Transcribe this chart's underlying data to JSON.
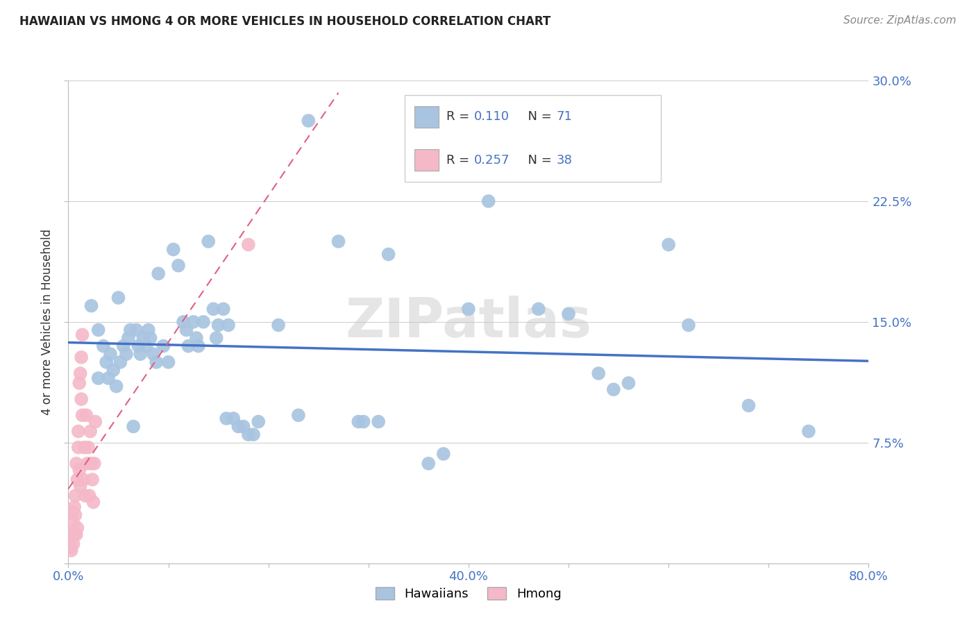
{
  "title": "HAWAIIAN VS HMONG 4 OR MORE VEHICLES IN HOUSEHOLD CORRELATION CHART",
  "source": "Source: ZipAtlas.com",
  "ylabel": "4 or more Vehicles in Household",
  "xlim": [
    0.0,
    0.8
  ],
  "ylim": [
    0.0,
    0.3
  ],
  "yticks": [
    0.0,
    0.075,
    0.15,
    0.225,
    0.3
  ],
  "xticks": [
    0.0,
    0.1,
    0.2,
    0.3,
    0.4,
    0.5,
    0.6,
    0.7,
    0.8
  ],
  "ytick_labels": [
    "",
    "7.5%",
    "15.0%",
    "22.5%",
    "30.0%"
  ],
  "xtick_labels": [
    "0.0%",
    "",
    "",
    "",
    "40.0%",
    "",
    "",
    "",
    "80.0%"
  ],
  "hawaiian_R": 0.11,
  "hawaiian_N": 71,
  "hmong_R": 0.257,
  "hmong_N": 38,
  "hawaiian_color": "#a8c4e0",
  "hmong_color": "#f4b8c8",
  "trend_hawaiian_color": "#4472c4",
  "trend_hmong_color": "#e06080",
  "watermark": "ZIPatlas",
  "hawaiian_x": [
    0.023,
    0.03,
    0.03,
    0.035,
    0.038,
    0.04,
    0.042,
    0.045,
    0.048,
    0.05,
    0.052,
    0.055,
    0.058,
    0.06,
    0.062,
    0.065,
    0.068,
    0.07,
    0.072,
    0.075,
    0.078,
    0.08,
    0.082,
    0.085,
    0.088,
    0.09,
    0.095,
    0.1,
    0.105,
    0.11,
    0.115,
    0.118,
    0.12,
    0.125,
    0.128,
    0.13,
    0.135,
    0.14,
    0.145,
    0.148,
    0.15,
    0.155,
    0.158,
    0.16,
    0.165,
    0.17,
    0.175,
    0.18,
    0.185,
    0.19,
    0.21,
    0.23,
    0.24,
    0.27,
    0.29,
    0.295,
    0.31,
    0.32,
    0.36,
    0.375,
    0.4,
    0.42,
    0.47,
    0.5,
    0.53,
    0.545,
    0.56,
    0.6,
    0.62,
    0.68,
    0.74
  ],
  "hawaiian_y": [
    0.16,
    0.145,
    0.115,
    0.135,
    0.125,
    0.115,
    0.13,
    0.12,
    0.11,
    0.165,
    0.125,
    0.135,
    0.13,
    0.14,
    0.145,
    0.085,
    0.145,
    0.135,
    0.13,
    0.14,
    0.135,
    0.145,
    0.14,
    0.13,
    0.125,
    0.18,
    0.135,
    0.125,
    0.195,
    0.185,
    0.15,
    0.145,
    0.135,
    0.15,
    0.14,
    0.135,
    0.15,
    0.2,
    0.158,
    0.14,
    0.148,
    0.158,
    0.09,
    0.148,
    0.09,
    0.085,
    0.085,
    0.08,
    0.08,
    0.088,
    0.148,
    0.092,
    0.275,
    0.2,
    0.088,
    0.088,
    0.088,
    0.192,
    0.062,
    0.068,
    0.158,
    0.225,
    0.158,
    0.155,
    0.118,
    0.108,
    0.112,
    0.198,
    0.148,
    0.098,
    0.082
  ],
  "hmong_x": [
    0.002,
    0.003,
    0.004,
    0.004,
    0.005,
    0.005,
    0.006,
    0.006,
    0.007,
    0.007,
    0.008,
    0.008,
    0.009,
    0.009,
    0.01,
    0.01,
    0.011,
    0.011,
    0.012,
    0.012,
    0.013,
    0.013,
    0.014,
    0.014,
    0.015,
    0.016,
    0.017,
    0.018,
    0.019,
    0.02,
    0.021,
    0.022,
    0.023,
    0.024,
    0.025,
    0.026,
    0.027,
    0.18
  ],
  "hmong_y": [
    0.01,
    0.008,
    0.032,
    0.018,
    0.012,
    0.025,
    0.018,
    0.035,
    0.042,
    0.03,
    0.018,
    0.062,
    0.052,
    0.022,
    0.082,
    0.072,
    0.112,
    0.058,
    0.048,
    0.118,
    0.102,
    0.128,
    0.092,
    0.142,
    0.052,
    0.072,
    0.042,
    0.092,
    0.062,
    0.072,
    0.042,
    0.082,
    0.062,
    0.052,
    0.038,
    0.062,
    0.088,
    0.198
  ],
  "hmong_trend_x0": 0.0,
  "hmong_trend_x1": 0.27,
  "hawaiian_trend_x0": 0.0,
  "hawaiian_trend_x1": 0.8
}
